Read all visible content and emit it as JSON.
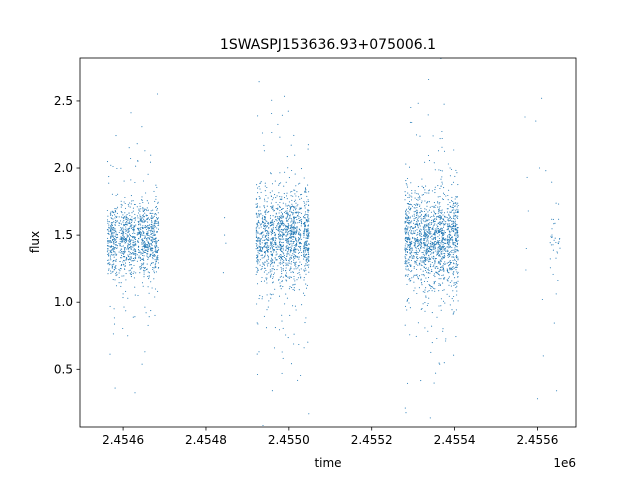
{
  "chart_data": {
    "type": "scatter",
    "title": "1SWASPJ153636.93+075006.1",
    "xlabel": "time",
    "ylabel": "flux",
    "x_offset_label": "1e6",
    "xlim": [
      2454496,
      2455693
    ],
    "ylim": [
      0.07,
      2.82
    ],
    "x_ticks": [
      {
        "value": 2454600,
        "label": "2.4546"
      },
      {
        "value": 2454800,
        "label": "2.4548"
      },
      {
        "value": 2455000,
        "label": "2.4550"
      },
      {
        "value": 2455200,
        "label": "2.4552"
      },
      {
        "value": 2455400,
        "label": "2.4554"
      },
      {
        "value": 2455600,
        "label": "2.4556"
      }
    ],
    "y_ticks": [
      {
        "value": 0.5,
        "label": "0.5"
      },
      {
        "value": 1.0,
        "label": "1.0"
      },
      {
        "value": 1.5,
        "label": "1.5"
      },
      {
        "value": 2.0,
        "label": "2.0"
      },
      {
        "value": 2.5,
        "label": "2.5"
      }
    ],
    "grid": false,
    "legend": "none",
    "marker_color": "#1f77b4",
    "series": [
      {
        "clusters": [
          {
            "x_range": [
              2454560,
              2454685
            ],
            "center": 1.47,
            "spread": 0.14,
            "outlier_spread": 0.45,
            "density": 11
          },
          {
            "x_range": [
              2454921,
              2455048
            ],
            "center": 1.48,
            "spread": 0.17,
            "outlier_spread": 0.6,
            "density": 15
          },
          {
            "x_range": [
              2455280,
              2455408
            ],
            "center": 1.47,
            "spread": 0.17,
            "outlier_spread": 0.6,
            "density": 15
          },
          {
            "x_range": [
              2455630,
              2455655
            ],
            "center": 1.45,
            "spread": 0.12,
            "outlier_spread": 0.4,
            "density": 2
          }
        ],
        "sparse_points": [
          [
            2454845,
            1.63
          ],
          [
            2454845,
            1.5
          ],
          [
            2454848,
            1.44
          ],
          [
            2454842,
            1.22
          ],
          [
            2455570,
            2.38
          ],
          [
            2455575,
            1.93
          ],
          [
            2455578,
            1.68
          ],
          [
            2455572,
            1.24
          ],
          [
            2455610,
            2.52
          ],
          [
            2455612,
            1.02
          ],
          [
            2455614,
            0.6
          ],
          [
            2455605,
            2.0
          ],
          [
            2455596,
            2.35
          ],
          [
            2455620,
            1.98
          ],
          [
            2455573,
            1.4
          ],
          [
            2455600,
            0.28
          ]
        ]
      }
    ]
  }
}
